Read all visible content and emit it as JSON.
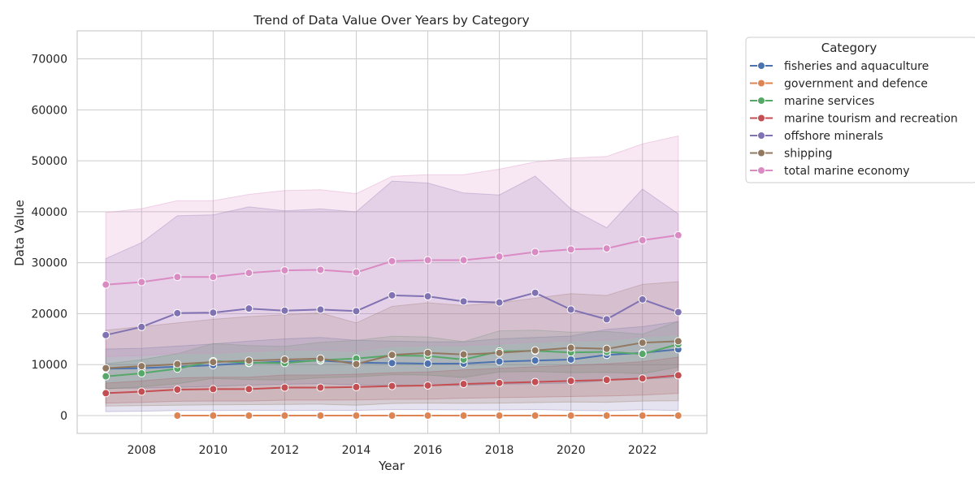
{
  "chart_data": {
    "type": "line",
    "title": "Trend of Data Value Over Years by Category",
    "xlabel": "Year",
    "ylabel": "Data Value",
    "xlim": [
      2006.2,
      2023.8
    ],
    "ylim": [
      -3500,
      75500
    ],
    "x_ticks": [
      2008,
      2010,
      2012,
      2014,
      2016,
      2018,
      2020,
      2022
    ],
    "y_ticks": [
      0,
      10000,
      20000,
      30000,
      40000,
      50000,
      60000,
      70000
    ],
    "grid": true,
    "legend": {
      "title": "Category",
      "placement": "outside-right"
    },
    "series": [
      {
        "name": "fisheries and aquaculture",
        "color": "#4c72b0",
        "x": [
          2007,
          2008,
          2009,
          2010,
          2011,
          2012,
          2013,
          2014,
          2015,
          2016,
          2017,
          2018,
          2019,
          2020,
          2021,
          2022,
          2023
        ],
        "values": [
          9200,
          9300,
          9600,
          9900,
          10300,
          10600,
          10800,
          10400,
          10300,
          10200,
          10200,
          10600,
          10800,
          11000,
          11900,
          12300,
          13000
        ]
      },
      {
        "name": "government and defence",
        "color": "#dd8452",
        "x": [
          2009,
          2010,
          2011,
          2012,
          2013,
          2014,
          2015,
          2016,
          2017,
          2018,
          2019,
          2020,
          2021,
          2022,
          2023
        ],
        "values": [
          0,
          0,
          0,
          0,
          0,
          0,
          0,
          0,
          0,
          0,
          0,
          0,
          0,
          0,
          0
        ]
      },
      {
        "name": "marine services",
        "color": "#55a868",
        "x": [
          2007,
          2008,
          2009,
          2010,
          2011,
          2012,
          2013,
          2014,
          2015,
          2016,
          2017,
          2018,
          2019,
          2020,
          2021,
          2022,
          2023
        ],
        "values": [
          7700,
          8300,
          9200,
          10700,
          10400,
          10300,
          10900,
          11200,
          11800,
          11700,
          11000,
          12600,
          12700,
          12400,
          12500,
          12100,
          14000
        ]
      },
      {
        "name": "marine tourism and recreation",
        "color": "#c44e52",
        "x": [
          2007,
          2008,
          2009,
          2010,
          2011,
          2012,
          2013,
          2014,
          2015,
          2016,
          2017,
          2018,
          2019,
          2020,
          2021,
          2022,
          2023
        ],
        "values": [
          4400,
          4700,
          5100,
          5200,
          5200,
          5500,
          5500,
          5600,
          5800,
          5900,
          6200,
          6400,
          6600,
          6800,
          7000,
          7300,
          7900
        ]
      },
      {
        "name": "offshore minerals",
        "color": "#8172b3",
        "x": [
          2007,
          2008,
          2009,
          2010,
          2011,
          2012,
          2013,
          2014,
          2015,
          2016,
          2017,
          2018,
          2019,
          2020,
          2021,
          2022,
          2023
        ],
        "values": [
          15800,
          17400,
          20100,
          20200,
          21000,
          20600,
          20800,
          20500,
          23600,
          23400,
          22400,
          22200,
          24100,
          20800,
          18900,
          22800,
          20300
        ]
      },
      {
        "name": "shipping",
        "color": "#937860",
        "x": [
          2007,
          2008,
          2009,
          2010,
          2011,
          2012,
          2013,
          2014,
          2015,
          2016,
          2017,
          2018,
          2019,
          2020,
          2021,
          2022,
          2023
        ],
        "values": [
          9300,
          9700,
          10100,
          10500,
          10800,
          11000,
          11200,
          10100,
          11900,
          12300,
          12000,
          12300,
          12800,
          13300,
          13100,
          14300,
          14600
        ]
      },
      {
        "name": "total marine economy",
        "color": "#da8bc3",
        "x": [
          2007,
          2008,
          2009,
          2010,
          2011,
          2012,
          2013,
          2014,
          2015,
          2016,
          2017,
          2018,
          2019,
          2020,
          2021,
          2022,
          2023
        ],
        "values": [
          25700,
          26200,
          27200,
          27200,
          28000,
          28500,
          28600,
          28100,
          30300,
          30500,
          30500,
          31200,
          32100,
          32600,
          32800,
          34400,
          35400
        ]
      }
    ]
  }
}
